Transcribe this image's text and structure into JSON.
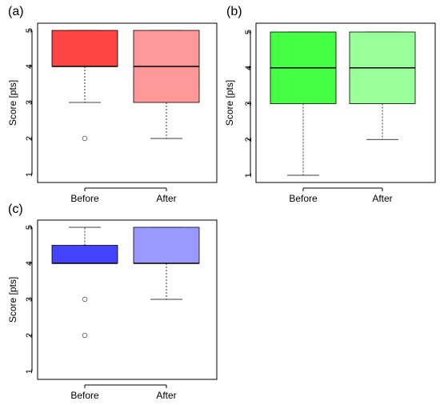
{
  "chart_data": [
    {
      "type": "box",
      "panel_label": "(a)",
      "ylabel": "Score [pts]",
      "ylim": [
        1,
        5
      ],
      "yticks": [
        "1",
        "2",
        "3",
        "4",
        "5"
      ],
      "categories": [
        "Before",
        "After"
      ],
      "boxes": [
        {
          "name": "Before",
          "color": "#ff4444",
          "whisker_low": 3,
          "q1": 4,
          "median": 4,
          "q3": 5,
          "whisker_high": 5,
          "outliers": [
            2
          ]
        },
        {
          "name": "After",
          "color": "#ff9999",
          "whisker_low": 2,
          "q1": 3,
          "median": 4,
          "q3": 5,
          "whisker_high": 5,
          "outliers": []
        }
      ]
    },
    {
      "type": "box",
      "panel_label": "(b)",
      "ylabel": "Score [pts]",
      "ylim": [
        1,
        5
      ],
      "yticks": [
        "1",
        "2",
        "3",
        "4",
        "5"
      ],
      "categories": [
        "Before",
        "After"
      ],
      "boxes": [
        {
          "name": "Before",
          "color": "#44ff44",
          "whisker_low": 1,
          "q1": 3,
          "median": 4,
          "q3": 5,
          "whisker_high": 5,
          "outliers": []
        },
        {
          "name": "After",
          "color": "#99ff99",
          "whisker_low": 2,
          "q1": 3,
          "median": 4,
          "q3": 5,
          "whisker_high": 5,
          "outliers": []
        }
      ]
    },
    {
      "type": "box",
      "panel_label": "(c)",
      "ylabel": "Score [pts]",
      "ylim": [
        1,
        5
      ],
      "yticks": [
        "1",
        "2",
        "3",
        "4",
        "5"
      ],
      "categories": [
        "Before",
        "After"
      ],
      "boxes": [
        {
          "name": "Before",
          "color": "#4444ff",
          "whisker_low": 4,
          "q1": 4,
          "median": 4,
          "q3": 4.5,
          "whisker_high": 5,
          "outliers": [
            3,
            2
          ]
        },
        {
          "name": "After",
          "color": "#9999ff",
          "whisker_low": 3,
          "q1": 4,
          "median": 4,
          "q3": 5,
          "whisker_high": 5,
          "outliers": []
        }
      ]
    }
  ]
}
